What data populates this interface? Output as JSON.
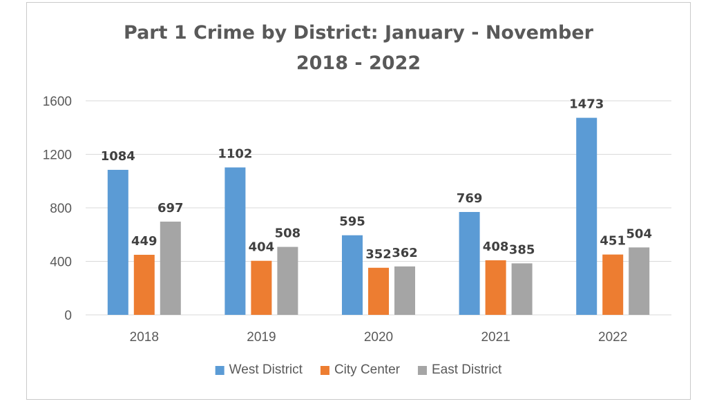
{
  "chart_data": {
    "type": "bar",
    "title_line_1": "Part 1 Crime by District: January - November",
    "title_line_2": "2018 - 2022",
    "categories": [
      "2018",
      "2019",
      "2020",
      "2021",
      "2022"
    ],
    "series": [
      {
        "name": "West District",
        "color": "#5b9bd5",
        "values": [
          1084,
          1102,
          595,
          769,
          1473
        ]
      },
      {
        "name": "City Center",
        "color": "#ed7d31",
        "values": [
          449,
          404,
          352,
          408,
          451
        ]
      },
      {
        "name": "East District",
        "color": "#a5a5a5",
        "values": [
          697,
          508,
          362,
          385,
          504
        ]
      }
    ],
    "yticks": [
      0,
      400,
      800,
      1200,
      1600
    ],
    "ylim": [
      0,
      1600
    ],
    "grid": true,
    "legend_position": "bottom",
    "data_labels": true
  }
}
